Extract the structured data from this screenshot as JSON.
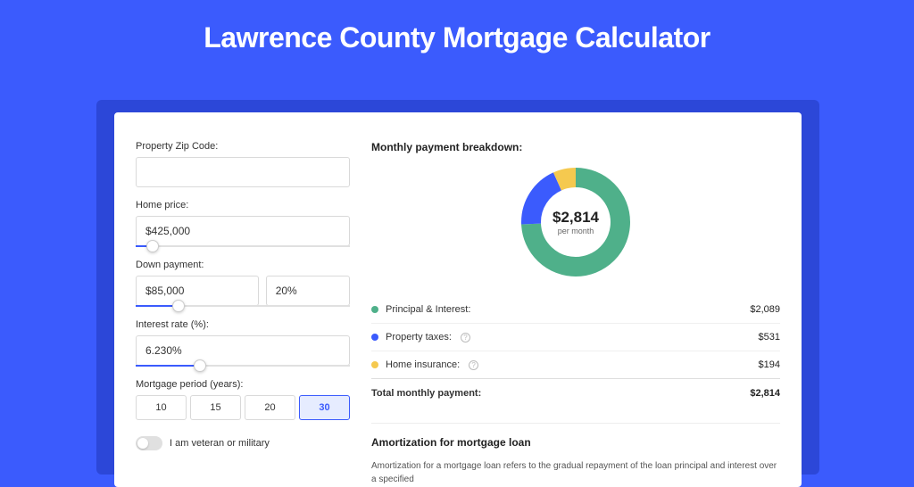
{
  "page": {
    "title": "Lawrence County Mortgage Calculator",
    "bg_color": "#3b5bfd",
    "card_shadow_color": "#2c47d8"
  },
  "inputs": {
    "zip": {
      "label": "Property Zip Code:",
      "value": ""
    },
    "home_price": {
      "label": "Home price:",
      "value": "$425,000",
      "slider_pct": 8
    },
    "down_payment": {
      "label": "Down payment:",
      "amount": "$85,000",
      "percent": "20%",
      "slider_pct": 20
    },
    "interest_rate": {
      "label": "Interest rate (%):",
      "value": "6.230%",
      "slider_pct": 30
    },
    "period": {
      "label": "Mortgage period (years):",
      "options": [
        "10",
        "15",
        "20",
        "30"
      ],
      "active_index": 3
    },
    "veteran": {
      "label": "I am veteran or military"
    }
  },
  "breakdown": {
    "heading": "Monthly payment breakdown:",
    "center_amount": "$2,814",
    "center_sub": "per month",
    "donut": {
      "radius": 50,
      "stroke_width": 22,
      "slices": [
        {
          "label": "Principal & Interest:",
          "value": "$2,089",
          "color": "#4fb08a",
          "pct": 74.2
        },
        {
          "label": "Property taxes:",
          "value": "$531",
          "color": "#3b5bfd",
          "pct": 18.9,
          "info": true
        },
        {
          "label": "Home insurance:",
          "value": "$194",
          "color": "#f5c94f",
          "pct": 6.9,
          "info": true
        }
      ]
    },
    "total": {
      "label": "Total monthly payment:",
      "value": "$2,814"
    }
  },
  "amortization": {
    "heading": "Amortization for mortgage loan",
    "text": "Amortization for a mortgage loan refers to the gradual repayment of the loan principal and interest over a specified"
  }
}
